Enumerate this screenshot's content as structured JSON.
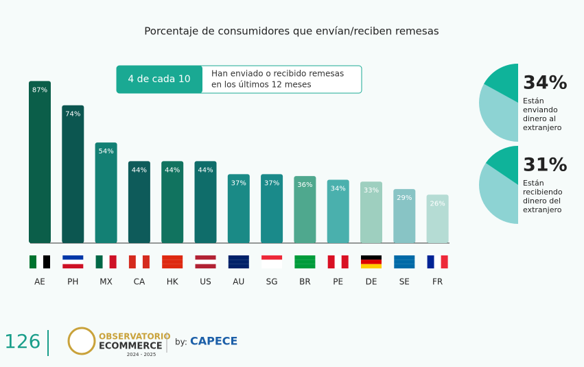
{
  "chart_data": {
    "type": "bar",
    "title": "Porcentaje de consumidores que envían/reciben remesas",
    "categories": [
      "AE",
      "PH",
      "MX",
      "CA",
      "HK",
      "US",
      "AU",
      "SG",
      "BR",
      "PE",
      "DE",
      "SE",
      "FR"
    ],
    "values": [
      87,
      74,
      54,
      44,
      44,
      44,
      37,
      37,
      36,
      34,
      33,
      29,
      26
    ],
    "value_labels": [
      "87%",
      "74%",
      "54%",
      "44%",
      "44%",
      "44%",
      "37%",
      "37%",
      "36%",
      "34%",
      "33%",
      "29%",
      "26%"
    ],
    "colors": [
      "#0b5e49",
      "#0c5650",
      "#138074",
      "#0e5b5a",
      "#11735f",
      "#0f6d6a",
      "#1a8a86",
      "#1a8a8a",
      "#4fa88e",
      "#4ab0ad",
      "#9ecfbf",
      "#88c4c5",
      "#b5dcd4"
    ],
    "ylim": [
      0,
      100
    ],
    "callout": {
      "highlight": "4 de cada 10",
      "lines": [
        "Han enviado o recibido remesas",
        "en los últimos 12 meses"
      ]
    },
    "side": [
      {
        "value": 34,
        "label": "34%",
        "lines": [
          "Están",
          "enviando",
          "dinero al",
          "extranjero"
        ]
      },
      {
        "value": 31,
        "label": "31%",
        "lines": [
          "Están",
          "recibiendo",
          "dinero del",
          "extranjero"
        ]
      }
    ]
  },
  "footer": {
    "page": "126",
    "brand": "OBSERVATORIO",
    "brand2": "ECOMMERCE",
    "years": "2024 - 2025",
    "by": "by:",
    "partner": "CAPECE"
  }
}
